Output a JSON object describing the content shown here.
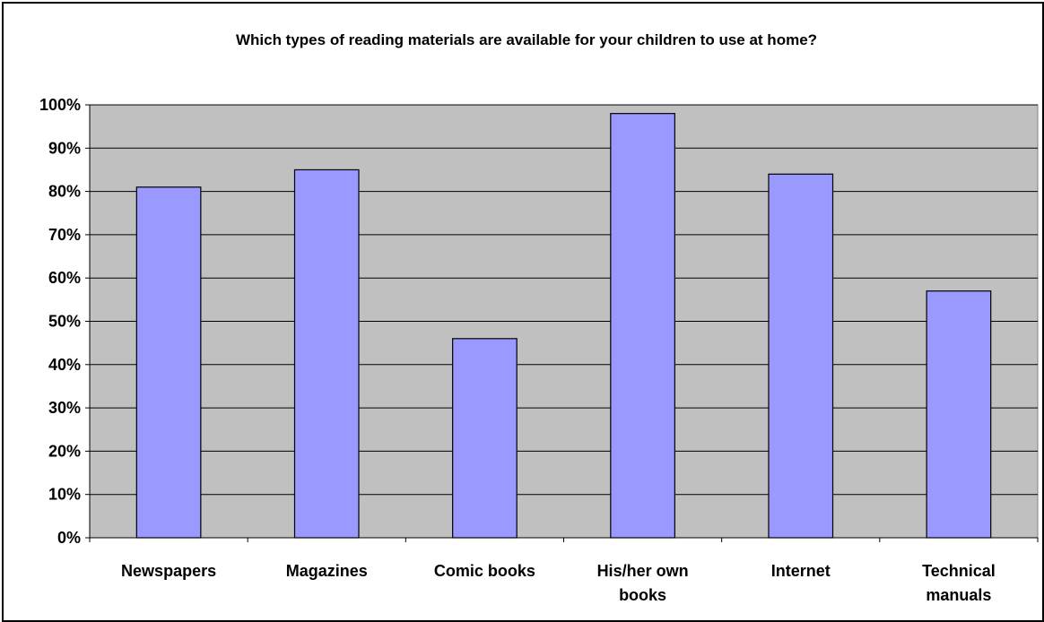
{
  "chart_data": {
    "type": "bar",
    "title": "Which types of reading materials are available for your children to use at home?",
    "xlabel": "",
    "ylabel": "",
    "categories": [
      [
        "Newspapers"
      ],
      [
        "Magazines"
      ],
      [
        "Comic books"
      ],
      [
        "His/her own",
        "books"
      ],
      [
        "Internet"
      ],
      [
        "Technical",
        "manuals"
      ]
    ],
    "values": [
      81,
      85,
      46,
      98,
      84,
      57
    ],
    "ylim": [
      0,
      100
    ],
    "yticks": [
      "0%",
      "10%",
      "20%",
      "30%",
      "40%",
      "50%",
      "60%",
      "70%",
      "80%",
      "90%",
      "100%"
    ],
    "grid": true,
    "legend": "none",
    "colors": {
      "bar_fill": "#9999ff",
      "bar_stroke": "#000000",
      "plot_background": "#c0c0c0",
      "gridline": "#000000"
    }
  }
}
